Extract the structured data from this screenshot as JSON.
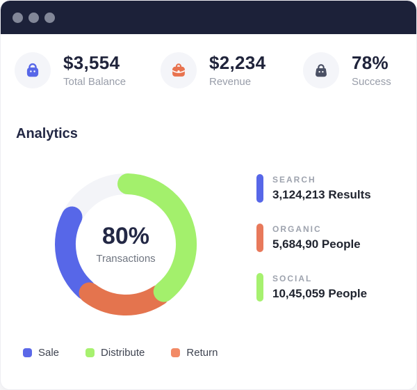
{
  "window": {
    "titlebar_color": "#1C2139",
    "dot_color": "#828798"
  },
  "stats": [
    {
      "icon": "shopping-bag",
      "icon_color": "#5767E8",
      "value": "$3,554",
      "label": "Total Balance"
    },
    {
      "icon": "briefcase",
      "icon_color": "#E8734F",
      "value": "$2,234",
      "label": "Revenue"
    },
    {
      "icon": "handbag",
      "icon_color": "#4A5064",
      "value": "78%",
      "label": "Success"
    }
  ],
  "analytics": {
    "title": "Analytics"
  },
  "chart_data": {
    "type": "donut",
    "title": "Analytics",
    "center_value": "80%",
    "center_label": "Transactions",
    "track_color": "#F3F4F8",
    "geometry": {
      "radius": 87,
      "stroke_width": 30
    },
    "segments": [
      {
        "name": "Sale",
        "color": "#5767E8",
        "start_deg": 222,
        "end_deg": 297
      },
      {
        "name": "Return",
        "color": "#E4744E",
        "start_deg": 147,
        "end_deg": 217
      },
      {
        "name": "Distribute",
        "color": "#A3F06C",
        "start_deg": 2,
        "end_deg": 141
      }
    ],
    "legend_right": [
      {
        "label": "SEARCH",
        "value": "3,124,213 Results",
        "color": "#5767E8"
      },
      {
        "label": "ORGANIC",
        "value": "5,684,90 People",
        "color": "#E8795B"
      },
      {
        "label": "SOCIAL",
        "value": "10,45,059 People",
        "color": "#A6F16F"
      }
    ],
    "legend_bottom": [
      {
        "label": "Sale",
        "color": "#5B68E8"
      },
      {
        "label": "Distribute",
        "color": "#A7F16F"
      },
      {
        "label": "Return",
        "color": "#F28A66"
      }
    ]
  }
}
